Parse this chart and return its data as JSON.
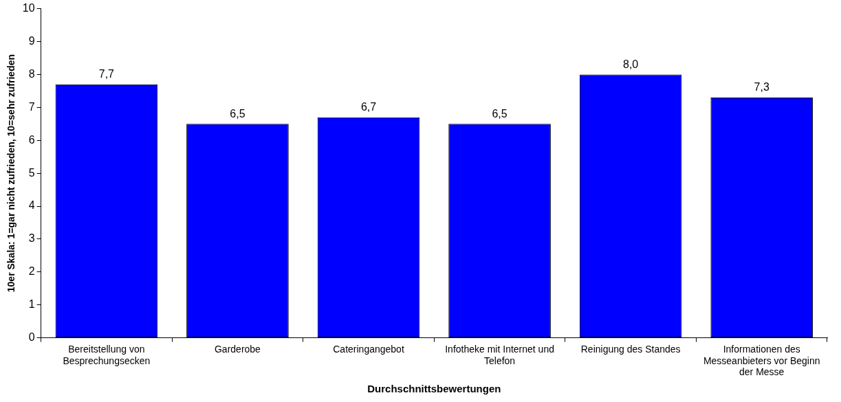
{
  "chart_data": {
    "type": "bar",
    "xlabel": "Durchschnittsbewertungen",
    "ylabel": "10er Skala: 1=gar nicht zufrieden, 10=sehr zufrieden",
    "categories": [
      "Bereitstellung von Besprechungsecken",
      "Garderobe",
      "Cateringangebot",
      "Infotheke mit Internet und Telefon",
      "Reinigung des Standes",
      "Informationen des Messeanbieters vor Beginn der Messe"
    ],
    "values": [
      7.7,
      6.5,
      6.7,
      6.5,
      8.0,
      7.3
    ],
    "value_labels": [
      "7,7",
      "6,5",
      "6,7",
      "6,5",
      "8,0",
      "7,3"
    ],
    "color": "#0000ff",
    "ylim": [
      0,
      10
    ],
    "yticks": [
      0,
      1,
      2,
      3,
      4,
      5,
      6,
      7,
      8,
      9,
      10
    ],
    "grid": false,
    "legend": false
  }
}
